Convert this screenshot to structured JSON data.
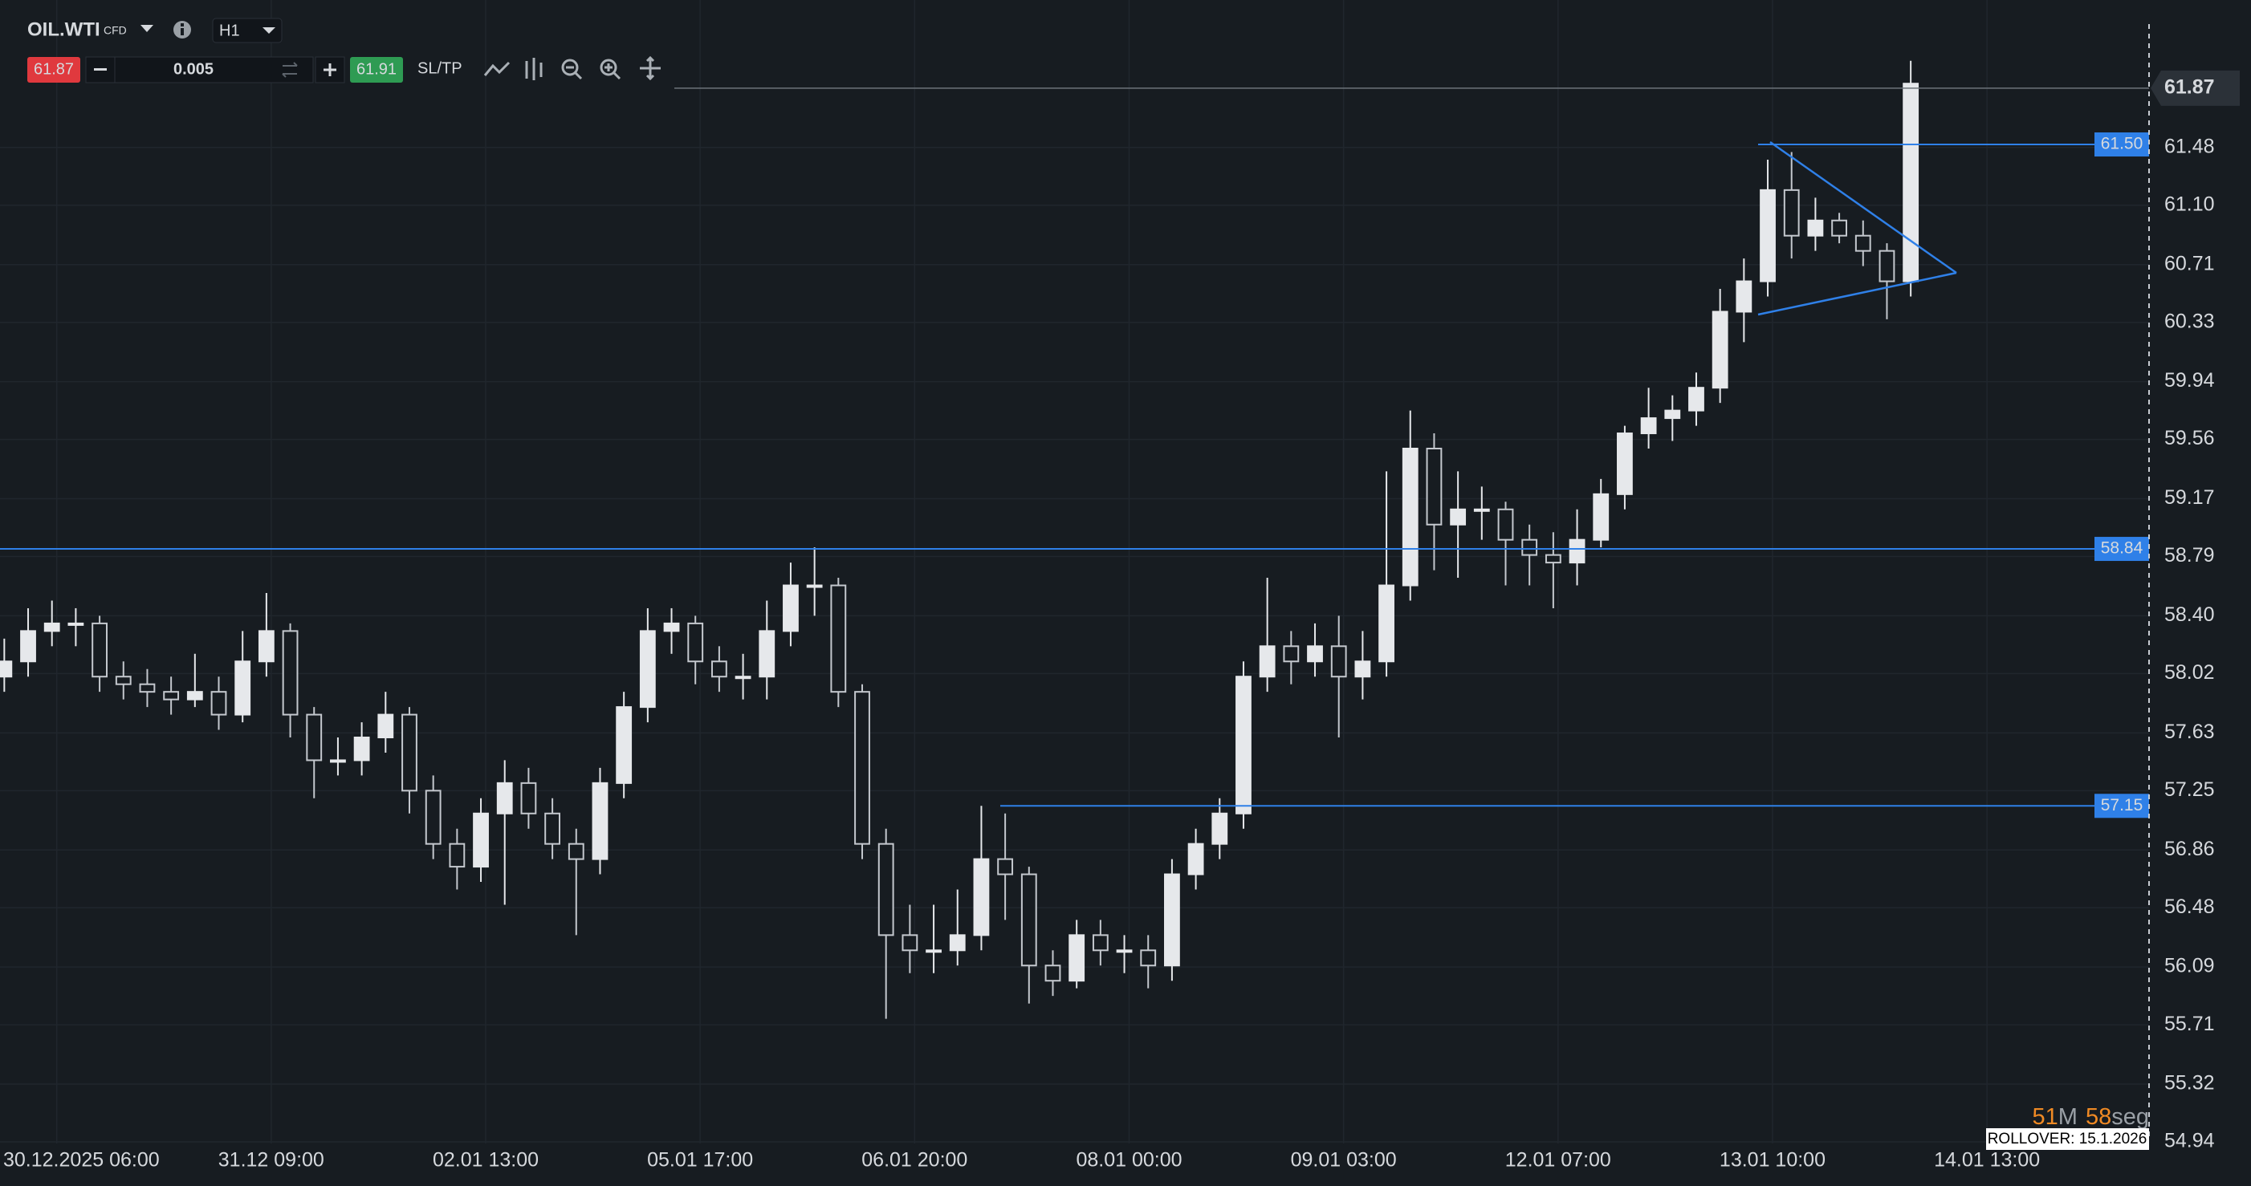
{
  "ui": {
    "symbol": "OIL.WTI",
    "instrument_type": "CFD",
    "timeframe": "H1",
    "bid": "61.87",
    "volume": "0.005",
    "ask": "61.91",
    "sl_tp": "SL/TP",
    "countdown": {
      "minutes": "51",
      "minutes_unit": "M",
      "seconds": "58",
      "seconds_unit": "seg"
    },
    "rollover": "ROLLOVER: 15.1.2026"
  },
  "chart_data": {
    "type": "candlestick",
    "ohlc": [
      [
        58.0,
        58.25,
        57.9,
        58.1
      ],
      [
        58.1,
        58.45,
        58.0,
        58.3
      ],
      [
        58.3,
        58.5,
        58.2,
        58.35
      ],
      [
        58.35,
        58.45,
        58.2,
        58.35
      ],
      [
        58.35,
        58.4,
        57.9,
        58.0
      ],
      [
        58.0,
        58.1,
        57.85,
        57.95
      ],
      [
        57.95,
        58.05,
        57.8,
        57.9
      ],
      [
        57.9,
        58.0,
        57.75,
        57.85
      ],
      [
        57.85,
        58.15,
        57.8,
        57.9
      ],
      [
        57.9,
        58.0,
        57.65,
        57.75
      ],
      [
        57.75,
        58.3,
        57.7,
        58.1
      ],
      [
        58.1,
        58.55,
        58.0,
        58.3
      ],
      [
        58.3,
        58.35,
        57.6,
        57.75
      ],
      [
        57.75,
        57.8,
        57.2,
        57.45
      ],
      [
        57.45,
        57.6,
        57.35,
        57.45
      ],
      [
        57.45,
        57.7,
        57.35,
        57.6
      ],
      [
        57.6,
        57.9,
        57.5,
        57.75
      ],
      [
        57.75,
        57.8,
        57.1,
        57.25
      ],
      [
        57.25,
        57.35,
        56.8,
        56.9
      ],
      [
        56.9,
        57.0,
        56.6,
        56.75
      ],
      [
        56.75,
        57.2,
        56.65,
        57.1
      ],
      [
        57.1,
        57.45,
        56.5,
        57.3
      ],
      [
        57.3,
        57.4,
        57.0,
        57.1
      ],
      [
        57.1,
        57.2,
        56.8,
        56.9
      ],
      [
        56.9,
        57.0,
        56.3,
        56.8
      ],
      [
        56.8,
        57.4,
        56.7,
        57.3
      ],
      [
        57.3,
        57.9,
        57.2,
        57.8
      ],
      [
        57.8,
        58.45,
        57.7,
        58.3
      ],
      [
        58.3,
        58.45,
        58.15,
        58.35
      ],
      [
        58.35,
        58.4,
        57.95,
        58.1
      ],
      [
        58.1,
        58.2,
        57.9,
        58.0
      ],
      [
        58.0,
        58.15,
        57.85,
        58.0
      ],
      [
        58.0,
        58.5,
        57.85,
        58.3
      ],
      [
        58.3,
        58.75,
        58.2,
        58.6
      ],
      [
        58.6,
        58.85,
        58.4,
        58.6
      ],
      [
        58.6,
        58.65,
        57.8,
        57.9
      ],
      [
        57.9,
        57.95,
        56.8,
        56.9
      ],
      [
        56.9,
        57.0,
        55.75,
        56.3
      ],
      [
        56.3,
        56.5,
        56.05,
        56.2
      ],
      [
        56.2,
        56.5,
        56.05,
        56.2
      ],
      [
        56.2,
        56.6,
        56.1,
        56.3
      ],
      [
        56.3,
        57.15,
        56.2,
        56.8
      ],
      [
        56.8,
        57.1,
        56.4,
        56.7
      ],
      [
        56.7,
        56.75,
        55.85,
        56.1
      ],
      [
        56.1,
        56.2,
        55.9,
        56.0
      ],
      [
        56.0,
        56.4,
        55.95,
        56.3
      ],
      [
        56.3,
        56.4,
        56.1,
        56.2
      ],
      [
        56.2,
        56.3,
        56.05,
        56.2
      ],
      [
        56.2,
        56.3,
        55.95,
        56.1
      ],
      [
        56.1,
        56.8,
        56.0,
        56.7
      ],
      [
        56.7,
        57.0,
        56.6,
        56.9
      ],
      [
        56.9,
        57.2,
        56.8,
        57.1
      ],
      [
        57.1,
        58.1,
        57.0,
        58.0
      ],
      [
        58.0,
        58.65,
        57.9,
        58.2
      ],
      [
        58.2,
        58.3,
        57.95,
        58.1
      ],
      [
        58.1,
        58.35,
        58.0,
        58.2
      ],
      [
        58.2,
        58.4,
        57.6,
        58.0
      ],
      [
        58.0,
        58.3,
        57.85,
        58.1
      ],
      [
        58.1,
        59.35,
        58.0,
        58.6
      ],
      [
        58.6,
        59.75,
        58.5,
        59.5
      ],
      [
        59.5,
        59.6,
        58.7,
        59.0
      ],
      [
        59.0,
        59.35,
        58.65,
        59.1
      ],
      [
        59.1,
        59.25,
        58.9,
        59.1
      ],
      [
        59.1,
        59.15,
        58.6,
        58.9
      ],
      [
        58.9,
        59.0,
        58.6,
        58.8
      ],
      [
        58.8,
        58.95,
        58.45,
        58.75
      ],
      [
        58.75,
        59.1,
        58.6,
        58.9
      ],
      [
        58.9,
        59.3,
        58.85,
        59.2
      ],
      [
        59.2,
        59.65,
        59.1,
        59.6
      ],
      [
        59.6,
        59.9,
        59.5,
        59.7
      ],
      [
        59.7,
        59.85,
        59.55,
        59.75
      ],
      [
        59.75,
        60.0,
        59.65,
        59.9
      ],
      [
        59.9,
        60.55,
        59.8,
        60.4
      ],
      [
        60.4,
        60.75,
        60.2,
        60.6
      ],
      [
        60.6,
        61.4,
        60.5,
        61.2
      ],
      [
        61.2,
        61.45,
        60.75,
        60.9
      ],
      [
        60.9,
        61.15,
        60.8,
        61.0
      ],
      [
        61.0,
        61.05,
        60.85,
        60.9
      ],
      [
        60.9,
        61.0,
        60.7,
        60.8
      ],
      [
        60.8,
        60.85,
        60.35,
        60.6
      ],
      [
        60.6,
        62.05,
        60.5,
        61.9
      ]
    ],
    "xlim": [
      -0.18,
      90.0
    ],
    "xticks": [
      {
        "value": 2.2,
        "label": "30.12.2025 06:00"
      },
      {
        "value": 11.2,
        "label": "31.12 09:00"
      },
      {
        "value": 20.2,
        "label": "02.01 13:00"
      },
      {
        "value": 29.2,
        "label": "05.01 17:00"
      },
      {
        "value": 38.2,
        "label": "06.01 20:00"
      },
      {
        "value": 47.2,
        "label": "08.01 00:00"
      },
      {
        "value": 56.2,
        "label": "09.01 03:00"
      },
      {
        "value": 65.2,
        "label": "12.01 07:00"
      },
      {
        "value": 74.2,
        "label": "13.01 10:00"
      },
      {
        "value": 83.2,
        "label": "14.01 13:00"
      }
    ],
    "ylim": [
      54.65,
      62.45
    ],
    "yticks": [
      61.48,
      {
        "value": 61.1,
        "label": "61.10"
      },
      60.71,
      60.33,
      59.94,
      59.56,
      59.17,
      58.79,
      {
        "value": 58.4,
        "label": "58.40"
      },
      58.02,
      57.63,
      57.25,
      56.86,
      56.48,
      56.09,
      55.71,
      55.32,
      54.94
    ],
    "last_price": 61.87,
    "levels": [
      {
        "value": 61.5,
        "label": "61.50"
      },
      58.84,
      57.15
    ],
    "grid": true,
    "up_color": "#e6e8eb",
    "down_color": "#c4c8ce",
    "level_color": "#2f80e8"
  }
}
